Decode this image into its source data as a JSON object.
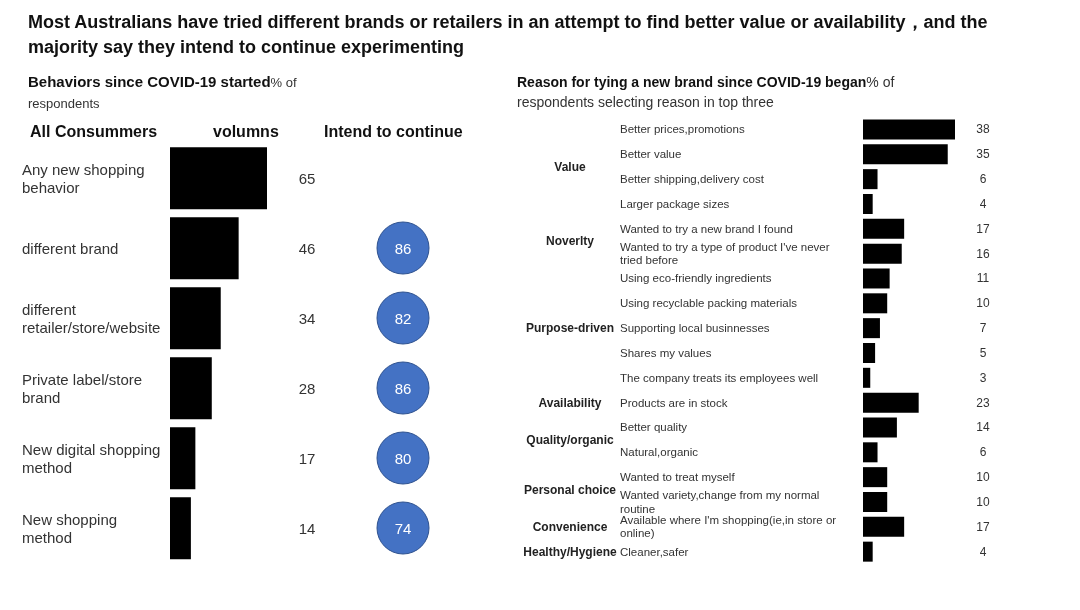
{
  "chart_data": [
    {
      "type": "bar",
      "orientation": "horizontal",
      "title": "Most Australians have tried different brands or retailers in an attempt to find better value or availability，and the majority say they intend to continue experimenting",
      "subtitle": "Behaviors since COVID-19 started",
      "annotations": [
        "% of respondents"
      ],
      "ylabel": "All Consummers",
      "xlabel": "volumns",
      "categories": [
        "Any new shopping behavior",
        "different brand",
        "different retailer/store/website",
        "Private label/store brand",
        "New digital shopping method",
        "New shopping method"
      ],
      "values": [
        65,
        46,
        34,
        28,
        17,
        14
      ],
      "color": "#000000",
      "data_labels": true
    },
    {
      "type": "other",
      "title": "Intend to continue",
      "categories": [
        null,
        null,
        null,
        null,
        null,
        null
      ],
      "values": [
        null,
        86,
        82,
        86,
        80,
        74
      ],
      "color": "#4472c4",
      "data_labels": true
    },
    {
      "type": "bar",
      "orientation": "horizontal",
      "title": "Reason for tying a new brand  since COVID-19 began",
      "subtitle": "% of respondents selecting reason in top three",
      "categories": [
        "Better prices,promotions",
        "Better value",
        "Better shipping,delivery cost",
        "Larger package sizes",
        "Wanted to try a new brand I found",
        "Wanted to try a type of product I've never tried before",
        "Using eco-friendly ingredients",
        "Using recyclable packing materials",
        "Supporting local businnesses",
        "Shares my values",
        "The company treats its employees well",
        "Products are in stock",
        "Better quality",
        "Natural,organic",
        "Wanted to treat myself",
        "Wanted variety,change from my normal routine",
        "Available where I'm shopping(ie,in store or online)",
        "Cleaner,safer"
      ],
      "values": [
        38,
        35,
        6,
        4,
        17,
        16,
        11,
        10,
        7,
        5,
        3,
        23,
        14,
        6,
        10,
        10,
        17,
        4
      ],
      "color": "#000000",
      "data_labels": true,
      "annotations": [
        "Value",
        "Noverlty",
        "Purpose-driven",
        "Availability",
        "Quality/organic",
        "Personal choice",
        "Convenience",
        "Healthy/Hygiene"
      ]
    }
  ]
}
